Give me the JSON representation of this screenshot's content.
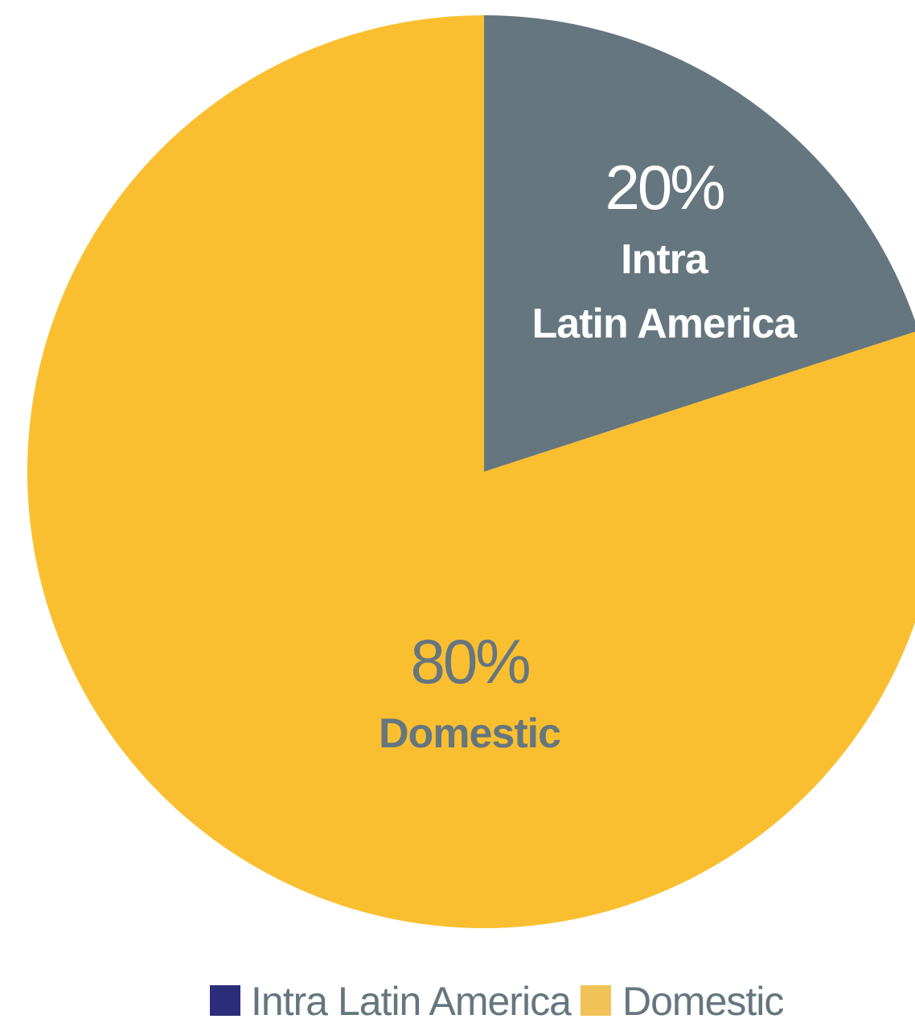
{
  "chart_data": {
    "type": "pie",
    "categories": [
      "Intra Latin America",
      "Domestic"
    ],
    "values": [
      20,
      80
    ],
    "value_labels": [
      "20%",
      "80%"
    ],
    "slice_labels": [
      [
        "Intra",
        "Latin America"
      ],
      [
        "Domestic"
      ]
    ],
    "slice_colors": [
      "#65767f",
      "#fabf30"
    ],
    "slice_label_colors": [
      "#ffffff",
      "#65767f"
    ],
    "legend": {
      "placement": "bottom",
      "entries": [
        {
          "label": "Intra Latin America",
          "color": "#2b2d7b"
        },
        {
          "label": "Domestic",
          "color": "#f1c258"
        }
      ],
      "text_color": "#65767f"
    },
    "start_angle": "12 o'clock",
    "direction": "clockwise"
  }
}
